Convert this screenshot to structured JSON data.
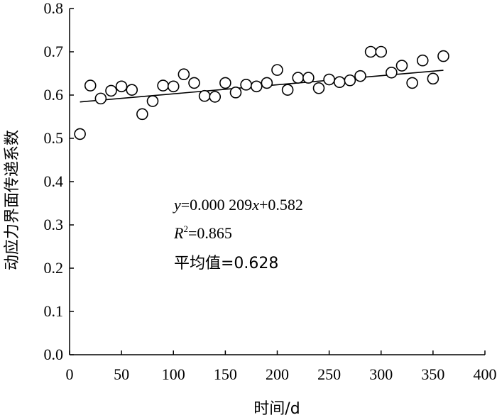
{
  "chart_data": {
    "type": "scatter",
    "xlabel": "时间/d",
    "ylabel": "动应力界面传递系数",
    "xlim": [
      0,
      400
    ],
    "ylim": [
      0.0,
      0.8
    ],
    "xticks": [
      "0",
      "50",
      "100",
      "150",
      "200",
      "250",
      "300",
      "350",
      "400"
    ],
    "yticks": [
      "0.0",
      "0.1",
      "0.2",
      "0.3",
      "0.4",
      "0.5",
      "0.6",
      "0.7",
      "0.8"
    ],
    "grid": false,
    "x": [
      10,
      20,
      30,
      40,
      50,
      60,
      70,
      80,
      90,
      100,
      110,
      120,
      130,
      140,
      150,
      160,
      170,
      180,
      190,
      200,
      210,
      220,
      230,
      240,
      250,
      260,
      270,
      280,
      290,
      300,
      310,
      320,
      330,
      340,
      350,
      360
    ],
    "y": [
      0.51,
      0.622,
      0.592,
      0.61,
      0.62,
      0.612,
      0.556,
      0.586,
      0.622,
      0.62,
      0.648,
      0.628,
      0.598,
      0.596,
      0.628,
      0.606,
      0.624,
      0.62,
      0.628,
      0.658,
      0.612,
      0.64,
      0.64,
      0.616,
      0.636,
      0.63,
      0.634,
      0.644,
      0.7,
      0.7,
      0.652,
      0.668,
      0.628,
      0.68,
      0.638,
      0.69
    ],
    "trendline": {
      "slope": 0.000209,
      "intercept": 0.582,
      "x_range": [
        10,
        360
      ]
    },
    "annotations": {
      "equation_y": "y",
      "equation_mid": "=0.000 209",
      "equation_x": "x",
      "equation_end": "+0.582",
      "r2_base": "R",
      "r2_sup": "2",
      "r2_value": "=0.865",
      "mean": "平均值=0.628"
    }
  }
}
